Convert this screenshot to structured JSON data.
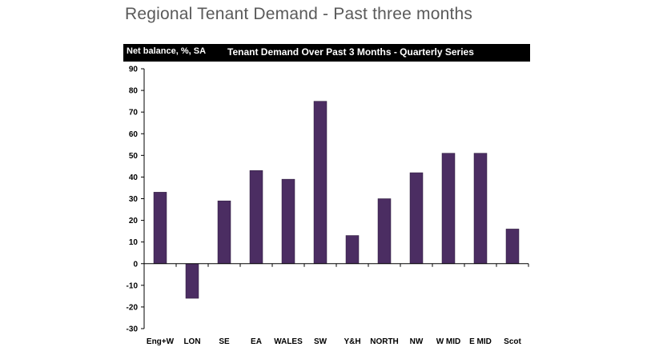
{
  "slide_title": "Regional Tenant Demand - Past three months",
  "colors": {
    "bar": "#4b2d62",
    "axis": "#000000"
  },
  "chart_data": {
    "type": "bar",
    "title": "Tenant Demand Over Past 3 Months - Quarterly Series",
    "ylabel": "Net balance, %, SA",
    "xlabel": "",
    "ylim": [
      -30,
      90
    ],
    "yticks": [
      90,
      80,
      70,
      60,
      50,
      40,
      30,
      20,
      10,
      0,
      -10,
      -20,
      -30
    ],
    "categories": [
      "Eng+W",
      "LON",
      "SE",
      "EA",
      "WALES",
      "SW",
      "Y&H",
      "NORTH",
      "NW",
      "W MID",
      "E MID",
      "Scot"
    ],
    "values": [
      33,
      -16,
      29,
      43,
      39,
      75,
      13,
      30,
      42,
      51,
      51,
      16
    ],
    "grid": false,
    "legend": "none"
  }
}
